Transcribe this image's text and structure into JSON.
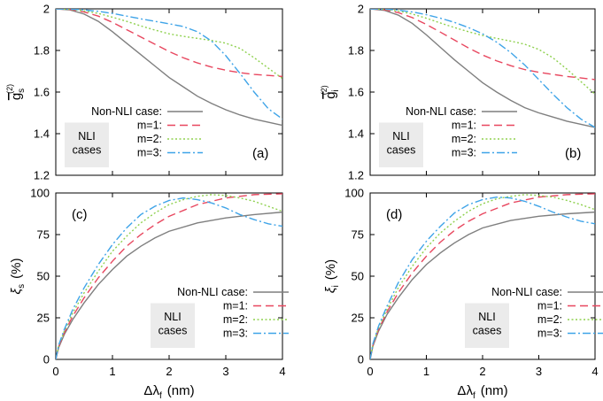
{
  "chart_data": [
    {
      "id": "a",
      "type": "line",
      "panel_label": "(a)",
      "ylabel": "g̅s(2)",
      "ylabel_main": "g",
      "ylabel_sub": "s",
      "ylabel_sup": "(2)",
      "xlim": [
        0,
        4
      ],
      "ylim": [
        1.2,
        2
      ],
      "xticks": [],
      "yticks": [
        "1.2",
        "1.4",
        "1.6",
        "1.8",
        "2"
      ],
      "legend_position": "bottom-left",
      "series": [
        {
          "name": "Non-NLI case:",
          "style": "solid",
          "color": "#7f7f7f",
          "x": [
            0,
            0.25,
            0.5,
            0.75,
            1,
            1.25,
            1.5,
            1.75,
            2,
            2.25,
            2.5,
            2.75,
            3,
            3.25,
            3.5,
            3.75,
            4
          ],
          "y": [
            2.0,
            1.995,
            1.975,
            1.94,
            1.89,
            1.835,
            1.78,
            1.725,
            1.67,
            1.625,
            1.58,
            1.545,
            1.515,
            1.49,
            1.47,
            1.455,
            1.44
          ]
        },
        {
          "name": "m=1:",
          "style": "dashed",
          "color": "#e8475f",
          "x": [
            0,
            0.25,
            0.5,
            0.75,
            1,
            1.25,
            1.5,
            1.75,
            2,
            2.25,
            2.5,
            2.75,
            3,
            3.25,
            3.5,
            3.75,
            4
          ],
          "y": [
            2.0,
            1.997,
            1.985,
            1.965,
            1.935,
            1.9,
            1.865,
            1.83,
            1.795,
            1.765,
            1.74,
            1.72,
            1.705,
            1.693,
            1.685,
            1.68,
            1.675
          ]
        },
        {
          "name": "m=2:",
          "style": "dotted",
          "color": "#8fd14f",
          "x": [
            0,
            0.25,
            0.5,
            0.75,
            1,
            1.25,
            1.5,
            1.75,
            2,
            2.25,
            2.5,
            2.75,
            3,
            3.25,
            3.5,
            3.75,
            4
          ],
          "y": [
            2.0,
            1.998,
            1.99,
            1.978,
            1.96,
            1.94,
            1.918,
            1.898,
            1.88,
            1.868,
            1.858,
            1.848,
            1.835,
            1.81,
            1.765,
            1.715,
            1.665
          ]
        },
        {
          "name": "m=3:",
          "style": "dashdot",
          "color": "#3fa4e8",
          "x": [
            0,
            0.25,
            0.5,
            0.75,
            1,
            1.25,
            1.5,
            1.75,
            2,
            2.25,
            2.5,
            2.75,
            3,
            3.25,
            3.5,
            3.75,
            4
          ],
          "y": [
            2.0,
            1.999,
            1.995,
            1.988,
            1.978,
            1.965,
            1.952,
            1.94,
            1.928,
            1.915,
            1.89,
            1.845,
            1.775,
            1.69,
            1.6,
            1.52,
            1.47
          ]
        }
      ]
    },
    {
      "id": "b",
      "type": "line",
      "panel_label": "(b)",
      "ylabel": "g̅i(2)",
      "ylabel_main": "g",
      "ylabel_sub": "i",
      "ylabel_sup": "(2)",
      "xlim": [
        0,
        4
      ],
      "ylim": [
        1.2,
        2
      ],
      "xticks": [],
      "yticks": [
        "1.2",
        "1.4",
        "1.6",
        "1.8",
        "2"
      ],
      "legend_position": "bottom-left",
      "series": [
        {
          "name": "Non-NLI case:",
          "style": "solid",
          "color": "#7f7f7f",
          "x": [
            0,
            0.25,
            0.5,
            0.75,
            1,
            1.25,
            1.5,
            1.75,
            2,
            2.25,
            2.5,
            2.75,
            3,
            3.25,
            3.5,
            3.75,
            4
          ],
          "y": [
            2.0,
            1.993,
            1.97,
            1.93,
            1.875,
            1.815,
            1.755,
            1.7,
            1.645,
            1.6,
            1.56,
            1.525,
            1.5,
            1.48,
            1.46,
            1.445,
            1.43
          ]
        },
        {
          "name": "m=1:",
          "style": "dashed",
          "color": "#e8475f",
          "x": [
            0,
            0.25,
            0.5,
            0.75,
            1,
            1.25,
            1.5,
            1.75,
            2,
            2.25,
            2.5,
            2.75,
            3,
            3.25,
            3.5,
            3.75,
            4
          ],
          "y": [
            2.0,
            1.996,
            1.982,
            1.958,
            1.925,
            1.888,
            1.85,
            1.812,
            1.778,
            1.75,
            1.727,
            1.708,
            1.695,
            1.685,
            1.675,
            1.668,
            1.66
          ]
        },
        {
          "name": "m=2:",
          "style": "dotted",
          "color": "#8fd14f",
          "x": [
            0,
            0.25,
            0.5,
            0.75,
            1,
            1.25,
            1.5,
            1.75,
            2,
            2.25,
            2.5,
            2.75,
            3,
            3.25,
            3.5,
            3.75,
            4
          ],
          "y": [
            2.0,
            1.998,
            1.99,
            1.975,
            1.955,
            1.932,
            1.91,
            1.89,
            1.872,
            1.858,
            1.845,
            1.83,
            1.805,
            1.765,
            1.71,
            1.65,
            1.59
          ]
        },
        {
          "name": "m=3:",
          "style": "dashdot",
          "color": "#3fa4e8",
          "x": [
            0,
            0.25,
            0.5,
            0.75,
            1,
            1.25,
            1.5,
            1.75,
            2,
            2.25,
            2.5,
            2.75,
            3,
            3.25,
            3.5,
            3.75,
            4
          ],
          "y": [
            2.0,
            1.999,
            1.994,
            1.985,
            1.972,
            1.955,
            1.935,
            1.91,
            1.88,
            1.84,
            1.79,
            1.73,
            1.66,
            1.59,
            1.525,
            1.47,
            1.43
          ]
        }
      ]
    },
    {
      "id": "c",
      "type": "line",
      "panel_label": "(c)",
      "ylabel": "ξs (%)",
      "ylabel_main": "ξ",
      "ylabel_sub": "s",
      "ylabel_unit": "(%)",
      "xlabel": "Δλf (nm)",
      "xlabel_main": "Δλ",
      "xlabel_sub": "f",
      "xlabel_unit": "(nm)",
      "xlim": [
        0,
        4
      ],
      "ylim": [
        0,
        100
      ],
      "xticks": [
        "0",
        "1",
        "2",
        "3",
        "4"
      ],
      "yticks": [
        "0",
        "25",
        "50",
        "75",
        "100"
      ],
      "legend_position": "bottom-right",
      "series": [
        {
          "name": "Non-NLI case:",
          "style": "solid",
          "color": "#7f7f7f",
          "x": [
            0,
            0.05,
            0.15,
            0.3,
            0.5,
            0.75,
            1,
            1.25,
            1.5,
            1.75,
            2,
            2.5,
            3,
            3.5,
            4
          ],
          "y": [
            0,
            7,
            15,
            24,
            34,
            45,
            54,
            62,
            68,
            73,
            77,
            82,
            85,
            87,
            88.5
          ]
        },
        {
          "name": "m=1:",
          "style": "dashed",
          "color": "#e8475f",
          "x": [
            0,
            0.05,
            0.15,
            0.3,
            0.5,
            0.75,
            1,
            1.25,
            1.5,
            1.75,
            2,
            2.5,
            3,
            3.5,
            4
          ],
          "y": [
            0,
            7.5,
            16,
            26,
            37,
            49,
            59,
            68,
            75,
            81,
            86,
            93,
            97,
            99,
            99.5
          ]
        },
        {
          "name": "m=2:",
          "style": "dotted",
          "color": "#8fd14f",
          "x": [
            0,
            0.05,
            0.15,
            0.3,
            0.5,
            0.75,
            1,
            1.25,
            1.5,
            1.75,
            2,
            2.25,
            2.5,
            2.75,
            3,
            3.25,
            3.5,
            3.75,
            4
          ],
          "y": [
            0,
            8,
            17,
            28,
            40,
            53,
            65,
            74,
            82,
            88,
            93,
            96,
            98,
            99,
            98.5,
            97,
            95,
            92,
            89
          ]
        },
        {
          "name": "m=3:",
          "style": "dashdot",
          "color": "#3fa4e8",
          "x": [
            0,
            0.05,
            0.15,
            0.3,
            0.5,
            0.75,
            1,
            1.25,
            1.5,
            1.75,
            2,
            2.25,
            2.5,
            2.75,
            3,
            3.25,
            3.5,
            3.75,
            4
          ],
          "y": [
            0,
            8.5,
            18,
            30,
            43,
            57,
            69,
            79,
            87,
            92,
            95.5,
            97,
            96,
            94,
            91,
            87,
            84,
            81.5,
            80
          ]
        }
      ]
    },
    {
      "id": "d",
      "type": "line",
      "panel_label": "(d)",
      "ylabel": "ξi (%)",
      "ylabel_main": "ξ",
      "ylabel_sub": "i",
      "ylabel_unit": "(%)",
      "xlabel": "Δλf (nm)",
      "xlabel_main": "Δλ",
      "xlabel_sub": "f",
      "xlabel_unit": "(nm)",
      "xlim": [
        0,
        4
      ],
      "ylim": [
        0,
        100
      ],
      "xticks": [
        "0",
        "1",
        "2",
        "3",
        "4"
      ],
      "yticks": [
        "0",
        "25",
        "50",
        "75",
        "100"
      ],
      "legend_position": "bottom-right",
      "series": [
        {
          "name": "Non-NLI case:",
          "style": "solid",
          "color": "#7f7f7f",
          "x": [
            0,
            0.05,
            0.15,
            0.3,
            0.5,
            0.75,
            1,
            1.25,
            1.5,
            1.75,
            2,
            2.5,
            3,
            3.5,
            4
          ],
          "y": [
            0,
            8,
            17,
            27,
            37,
            48,
            57,
            64,
            70,
            75,
            79,
            83.5,
            86,
            87.5,
            88.5
          ]
        },
        {
          "name": "m=1:",
          "style": "dashed",
          "color": "#e8475f",
          "x": [
            0,
            0.05,
            0.15,
            0.3,
            0.5,
            0.75,
            1,
            1.25,
            1.5,
            1.75,
            2,
            2.5,
            3,
            3.5,
            4
          ],
          "y": [
            0,
            8.5,
            18,
            28.5,
            40,
            52,
            62,
            70.5,
            77.5,
            83,
            87.5,
            94,
            97.5,
            99,
            99.5
          ]
        },
        {
          "name": "m=2:",
          "style": "dotted",
          "color": "#8fd14f",
          "x": [
            0,
            0.05,
            0.15,
            0.3,
            0.5,
            0.75,
            1,
            1.25,
            1.5,
            1.75,
            2,
            2.25,
            2.5,
            2.75,
            3,
            3.25,
            3.5,
            3.75,
            4
          ],
          "y": [
            0,
            9,
            19,
            30,
            43,
            56,
            67,
            76,
            83,
            89,
            93.5,
            96.5,
            98,
            99,
            98.5,
            97.5,
            95.5,
            93,
            90
          ]
        },
        {
          "name": "m=3:",
          "style": "dashdot",
          "color": "#3fa4e8",
          "x": [
            0,
            0.05,
            0.15,
            0.3,
            0.5,
            0.75,
            1,
            1.25,
            1.5,
            1.75,
            2,
            2.25,
            2.5,
            2.75,
            3,
            3.25,
            3.5,
            3.75,
            4
          ],
          "y": [
            0,
            9.5,
            20,
            32,
            46,
            60,
            71,
            80,
            88,
            93,
            96,
            97.5,
            97,
            95,
            92,
            88.5,
            85.5,
            83,
            81.5
          ]
        }
      ]
    }
  ],
  "legend": {
    "non_nli_label": "Non-NLI case:",
    "nli_group_line1": "NLI",
    "nli_group_line2": "cases"
  }
}
